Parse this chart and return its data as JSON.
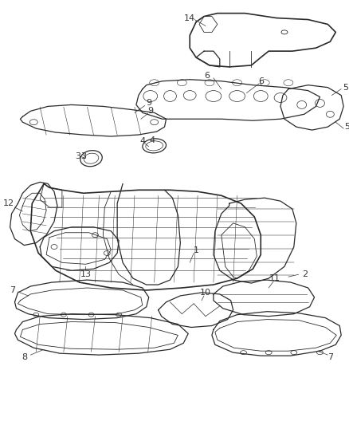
{
  "background_color": "#ffffff",
  "line_color": "#2a2a2a",
  "label_color": "#333333",
  "fig_width": 4.39,
  "fig_height": 5.33,
  "dpi": 100
}
